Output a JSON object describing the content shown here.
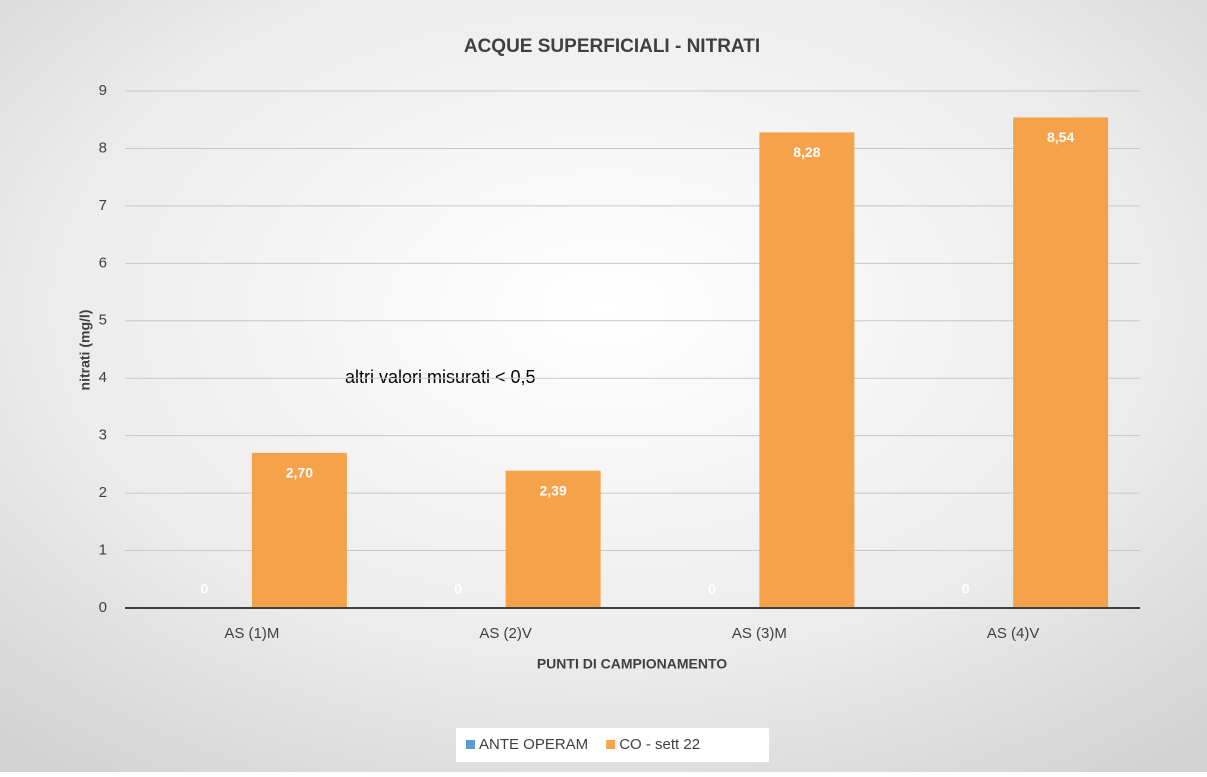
{
  "chart_data": {
    "type": "bar",
    "title": "ACQUE SUPERFICIALI - NITRATI",
    "xlabel": "PUNTI DI CAMPIONAMENTO",
    "ylabel": "nitrati (mg/l)",
    "annotation": "altri valori misurati  < 0,5",
    "categories": [
      "AS (1)M",
      "AS (2)V",
      "AS (3)M",
      "AS (4)V"
    ],
    "series": [
      {
        "name": "ANTE OPERAM",
        "color": "#5b9bd5",
        "values": [
          0,
          0,
          0,
          0
        ]
      },
      {
        "name": "CO - sett 22",
        "color": "#f5a24b",
        "values": [
          2.7,
          2.39,
          8.28,
          8.54
        ],
        "value_labels": [
          "2,70",
          "2,39",
          "8,28",
          "8,54"
        ]
      }
    ],
    "ylim": [
      0,
      9
    ],
    "yticks": [
      0,
      1,
      2,
      3,
      4,
      5,
      6,
      7,
      8,
      9
    ],
    "grid": true,
    "legend": "bottom"
  }
}
